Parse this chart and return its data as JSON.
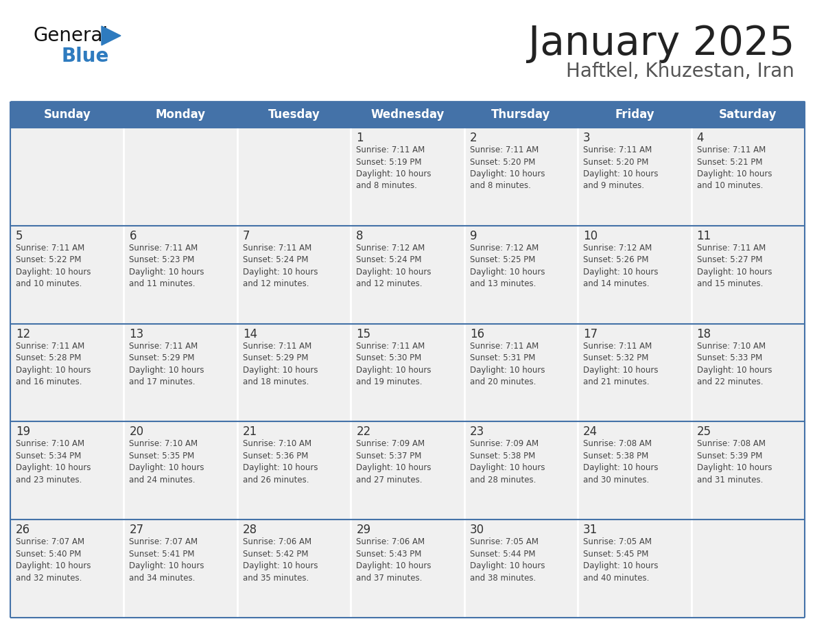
{
  "title": "January 2025",
  "subtitle": "Haftkel, Khuzestan, Iran",
  "days_of_week": [
    "Sunday",
    "Monday",
    "Tuesday",
    "Wednesday",
    "Thursday",
    "Friday",
    "Saturday"
  ],
  "header_bg_color": "#4472a8",
  "header_text_color": "#ffffff",
  "cell_bg_color": "#f0f0f0",
  "cell_border_color": "#4472a8",
  "day_number_color": "#333333",
  "cell_text_color": "#444444",
  "title_color": "#222222",
  "subtitle_color": "#555555",
  "general_text_color": "#111111",
  "blue_color": "#2e7bbf",
  "calendar": [
    [
      {
        "day": null,
        "info": ""
      },
      {
        "day": null,
        "info": ""
      },
      {
        "day": null,
        "info": ""
      },
      {
        "day": 1,
        "info": "Sunrise: 7:11 AM\nSunset: 5:19 PM\nDaylight: 10 hours\nand 8 minutes."
      },
      {
        "day": 2,
        "info": "Sunrise: 7:11 AM\nSunset: 5:20 PM\nDaylight: 10 hours\nand 8 minutes."
      },
      {
        "day": 3,
        "info": "Sunrise: 7:11 AM\nSunset: 5:20 PM\nDaylight: 10 hours\nand 9 minutes."
      },
      {
        "day": 4,
        "info": "Sunrise: 7:11 AM\nSunset: 5:21 PM\nDaylight: 10 hours\nand 10 minutes."
      }
    ],
    [
      {
        "day": 5,
        "info": "Sunrise: 7:11 AM\nSunset: 5:22 PM\nDaylight: 10 hours\nand 10 minutes."
      },
      {
        "day": 6,
        "info": "Sunrise: 7:11 AM\nSunset: 5:23 PM\nDaylight: 10 hours\nand 11 minutes."
      },
      {
        "day": 7,
        "info": "Sunrise: 7:11 AM\nSunset: 5:24 PM\nDaylight: 10 hours\nand 12 minutes."
      },
      {
        "day": 8,
        "info": "Sunrise: 7:12 AM\nSunset: 5:24 PM\nDaylight: 10 hours\nand 12 minutes."
      },
      {
        "day": 9,
        "info": "Sunrise: 7:12 AM\nSunset: 5:25 PM\nDaylight: 10 hours\nand 13 minutes."
      },
      {
        "day": 10,
        "info": "Sunrise: 7:12 AM\nSunset: 5:26 PM\nDaylight: 10 hours\nand 14 minutes."
      },
      {
        "day": 11,
        "info": "Sunrise: 7:11 AM\nSunset: 5:27 PM\nDaylight: 10 hours\nand 15 minutes."
      }
    ],
    [
      {
        "day": 12,
        "info": "Sunrise: 7:11 AM\nSunset: 5:28 PM\nDaylight: 10 hours\nand 16 minutes."
      },
      {
        "day": 13,
        "info": "Sunrise: 7:11 AM\nSunset: 5:29 PM\nDaylight: 10 hours\nand 17 minutes."
      },
      {
        "day": 14,
        "info": "Sunrise: 7:11 AM\nSunset: 5:29 PM\nDaylight: 10 hours\nand 18 minutes."
      },
      {
        "day": 15,
        "info": "Sunrise: 7:11 AM\nSunset: 5:30 PM\nDaylight: 10 hours\nand 19 minutes."
      },
      {
        "day": 16,
        "info": "Sunrise: 7:11 AM\nSunset: 5:31 PM\nDaylight: 10 hours\nand 20 minutes."
      },
      {
        "day": 17,
        "info": "Sunrise: 7:11 AM\nSunset: 5:32 PM\nDaylight: 10 hours\nand 21 minutes."
      },
      {
        "day": 18,
        "info": "Sunrise: 7:10 AM\nSunset: 5:33 PM\nDaylight: 10 hours\nand 22 minutes."
      }
    ],
    [
      {
        "day": 19,
        "info": "Sunrise: 7:10 AM\nSunset: 5:34 PM\nDaylight: 10 hours\nand 23 minutes."
      },
      {
        "day": 20,
        "info": "Sunrise: 7:10 AM\nSunset: 5:35 PM\nDaylight: 10 hours\nand 24 minutes."
      },
      {
        "day": 21,
        "info": "Sunrise: 7:10 AM\nSunset: 5:36 PM\nDaylight: 10 hours\nand 26 minutes."
      },
      {
        "day": 22,
        "info": "Sunrise: 7:09 AM\nSunset: 5:37 PM\nDaylight: 10 hours\nand 27 minutes."
      },
      {
        "day": 23,
        "info": "Sunrise: 7:09 AM\nSunset: 5:38 PM\nDaylight: 10 hours\nand 28 minutes."
      },
      {
        "day": 24,
        "info": "Sunrise: 7:08 AM\nSunset: 5:38 PM\nDaylight: 10 hours\nand 30 minutes."
      },
      {
        "day": 25,
        "info": "Sunrise: 7:08 AM\nSunset: 5:39 PM\nDaylight: 10 hours\nand 31 minutes."
      }
    ],
    [
      {
        "day": 26,
        "info": "Sunrise: 7:07 AM\nSunset: 5:40 PM\nDaylight: 10 hours\nand 32 minutes."
      },
      {
        "day": 27,
        "info": "Sunrise: 7:07 AM\nSunset: 5:41 PM\nDaylight: 10 hours\nand 34 minutes."
      },
      {
        "day": 28,
        "info": "Sunrise: 7:06 AM\nSunset: 5:42 PM\nDaylight: 10 hours\nand 35 minutes."
      },
      {
        "day": 29,
        "info": "Sunrise: 7:06 AM\nSunset: 5:43 PM\nDaylight: 10 hours\nand 37 minutes."
      },
      {
        "day": 30,
        "info": "Sunrise: 7:05 AM\nSunset: 5:44 PM\nDaylight: 10 hours\nand 38 minutes."
      },
      {
        "day": 31,
        "info": "Sunrise: 7:05 AM\nSunset: 5:45 PM\nDaylight: 10 hours\nand 40 minutes."
      },
      {
        "day": null,
        "info": ""
      }
    ]
  ]
}
